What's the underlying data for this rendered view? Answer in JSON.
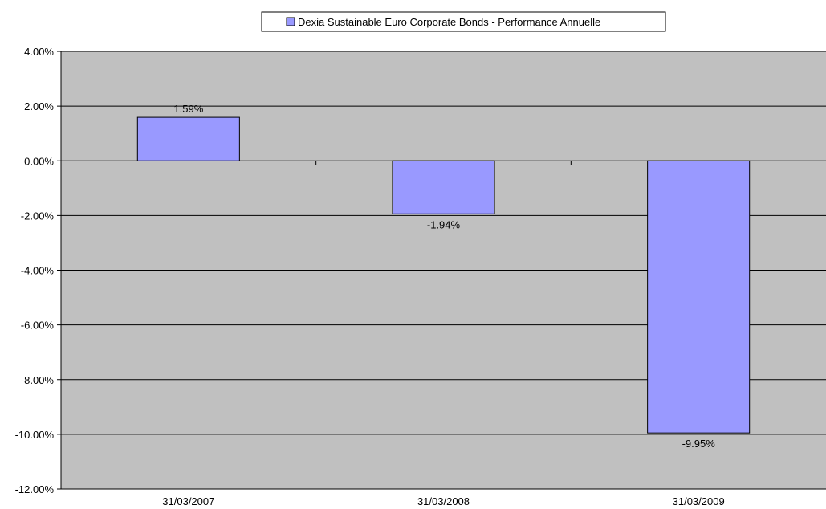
{
  "chart_data": {
    "type": "bar",
    "categories": [
      "31/03/2007",
      "31/03/2008",
      "31/03/2009"
    ],
    "series": [
      {
        "name": "Dexia Sustainable Euro Corporate Bonds - Performance Annuelle",
        "values": [
          1.59,
          -1.94,
          -9.95
        ],
        "labels": [
          "1.59%",
          "-1.94%",
          "-9.95%"
        ]
      }
    ],
    "ylim": [
      -12,
      4
    ],
    "yticks": [
      4,
      2,
      0,
      -2,
      -4,
      -6,
      -8,
      -10,
      -12
    ],
    "ytick_labels": [
      "4.00%",
      "2.00%",
      "0.00%",
      "-2.00%",
      "-4.00%",
      "-6.00%",
      "-8.00%",
      "-10.00%",
      "-12.00%"
    ],
    "grid": true,
    "legend_position": "top-center",
    "colors": {
      "bar_fill": "#9999ff",
      "plot_background": "#c0c0c0",
      "gridline": "#000000"
    }
  }
}
